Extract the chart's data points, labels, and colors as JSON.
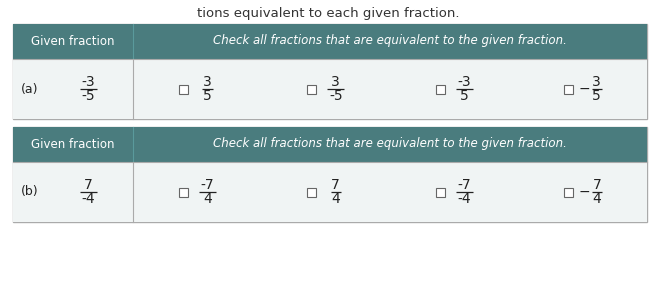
{
  "title_text": "tions equivalent to each given fraction.",
  "title_color": "#333333",
  "header_bg": "#4a7c7e",
  "header_text_color": "#ffffff",
  "row_bg": "#f0f4f4",
  "outer_bg": "#e8e8e8",
  "border_color": "#aaaaaa",
  "fig_bg": "#d8d8d8",
  "table_a": {
    "given_label": "(a)",
    "given_num": "-3",
    "given_den": "-5",
    "col1_header": "Given fraction",
    "col2_header": "Check all fractions that are equivalent to the given fraction.",
    "options": [
      {
        "num": "3",
        "den": "5",
        "sign": ""
      },
      {
        "num": "3",
        "den": "-5",
        "sign": ""
      },
      {
        "num": "-3",
        "den": "5",
        "sign": ""
      },
      {
        "num": "3",
        "den": "5",
        "sign": "-"
      }
    ]
  },
  "table_b": {
    "given_label": "(b)",
    "given_num": "7",
    "given_den": "-4",
    "col1_header": "Given fraction",
    "col2_header": "Check all fractions that are equivalent to the given fraction.",
    "options": [
      {
        "num": "-7",
        "den": "4",
        "sign": ""
      },
      {
        "num": "7",
        "den": "4",
        "sign": ""
      },
      {
        "num": "-7",
        "den": "-4",
        "sign": ""
      },
      {
        "num": "7",
        "den": "4",
        "sign": "-"
      }
    ]
  }
}
